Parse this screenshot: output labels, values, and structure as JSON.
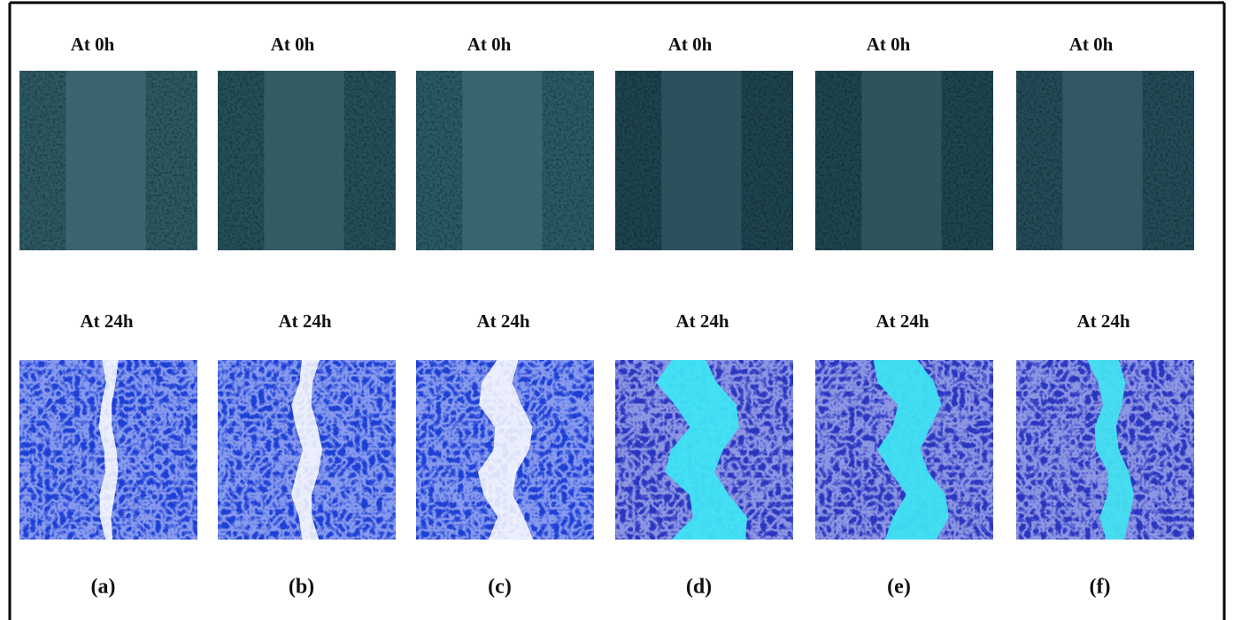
{
  "columns": [
    {
      "top_label": "At 0h",
      "bottom_label": "At 24h",
      "panel": "(a)"
    },
    {
      "top_label": "At 0h",
      "bottom_label": "At 24h",
      "panel": "(b)"
    },
    {
      "top_label": "At 0h",
      "bottom_label": "At 24h",
      "panel": "(c)"
    },
    {
      "top_label": "At 0h",
      "bottom_label": "At 24h",
      "panel": "(d)"
    },
    {
      "top_label": "At 0h",
      "bottom_label": "At 24h",
      "panel": "(e)"
    },
    {
      "top_label": "At 0h",
      "bottom_label": "At 24h",
      "panel": "(f)"
    }
  ]
}
